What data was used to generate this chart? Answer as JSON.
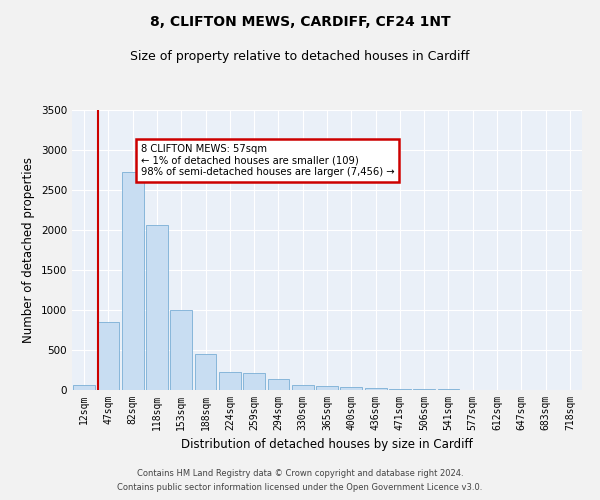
{
  "title1": "8, CLIFTON MEWS, CARDIFF, CF24 1NT",
  "title2": "Size of property relative to detached houses in Cardiff",
  "xlabel": "Distribution of detached houses by size in Cardiff",
  "ylabel": "Number of detached properties",
  "categories": [
    "12sqm",
    "47sqm",
    "82sqm",
    "118sqm",
    "153sqm",
    "188sqm",
    "224sqm",
    "259sqm",
    "294sqm",
    "330sqm",
    "365sqm",
    "400sqm",
    "436sqm",
    "471sqm",
    "506sqm",
    "541sqm",
    "577sqm",
    "612sqm",
    "647sqm",
    "683sqm",
    "718sqm"
  ],
  "bar_values": [
    60,
    850,
    2720,
    2060,
    1000,
    450,
    220,
    210,
    135,
    65,
    55,
    35,
    25,
    18,
    10,
    8,
    5,
    4,
    3,
    2,
    1
  ],
  "bar_color": "#c8ddf2",
  "bar_edge_color": "#7aaed6",
  "ylim": [
    0,
    3500
  ],
  "yticks": [
    0,
    500,
    1000,
    1500,
    2000,
    2500,
    3000,
    3500
  ],
  "annotation_text": "8 CLIFTON MEWS: 57sqm\n← 1% of detached houses are smaller (109)\n98% of semi-detached houses are larger (7,456) →",
  "annotation_box_color": "#ffffff",
  "annotation_box_edge": "#cc0000",
  "vline_color": "#cc0000",
  "footer1": "Contains HM Land Registry data © Crown copyright and database right 2024.",
  "footer2": "Contains public sector information licensed under the Open Government Licence v3.0.",
  "bg_color": "#eaf0f8",
  "grid_color": "#ffffff",
  "title1_fontsize": 10,
  "title2_fontsize": 9,
  "tick_fontsize": 7,
  "ylabel_fontsize": 8.5,
  "xlabel_fontsize": 8.5,
  "footer_fontsize": 6
}
